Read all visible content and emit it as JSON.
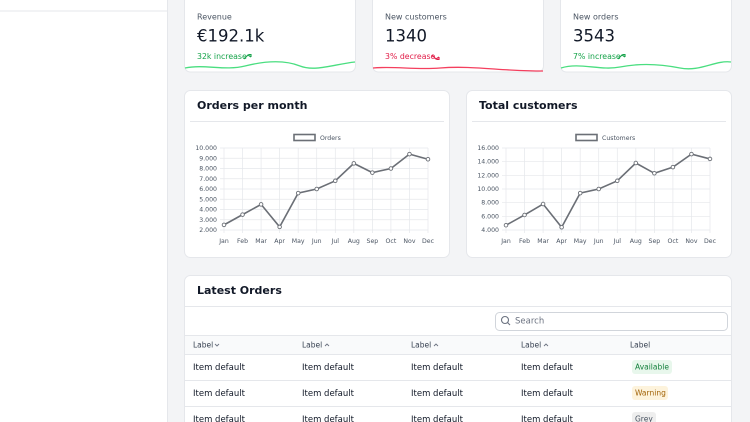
{
  "cards": [
    {
      "label": "Revenue",
      "value": "€192.1k",
      "change": "32k increase"
    },
    {
      "label": "New customers",
      "value": "1340",
      "change": "3% decrease"
    },
    {
      "label": "New orders",
      "value": "3543",
      "change": "7% increase"
    }
  ],
  "chart_data": [
    {
      "type": "line",
      "title": "Orders per month",
      "categories": [
        "Jan",
        "Feb",
        "Mar",
        "Apr",
        "May",
        "Jun",
        "Jul",
        "Aug",
        "Sep",
        "Oct",
        "Nov",
        "Dec"
      ],
      "series": [
        {
          "name": "Orders",
          "color": "#6b6f76",
          "values": [
            2500,
            3500,
            4500,
            2300,
            5600,
            6000,
            6800,
            8500,
            7600,
            8000,
            9400,
            8900
          ]
        }
      ],
      "ylim": [
        2000,
        10000
      ],
      "yticks": [
        {
          "value": 2000,
          "label": "2.000"
        },
        {
          "value": 3000,
          "label": "3.000"
        },
        {
          "value": 4000,
          "label": "4.000"
        },
        {
          "value": 5000,
          "label": "5.000"
        },
        {
          "value": 6000,
          "label": "6.000"
        },
        {
          "value": 7000,
          "label": "7.000"
        },
        {
          "value": 8000,
          "label": "8.000"
        },
        {
          "value": 9000,
          "label": "9.000"
        },
        {
          "value": 10000,
          "label": "10.000"
        }
      ],
      "grid": true,
      "legend": "top"
    },
    {
      "type": "line",
      "title": "Total customers",
      "categories": [
        "Jan",
        "Feb",
        "Mar",
        "Apr",
        "May",
        "Jun",
        "Jul",
        "Aug",
        "Sep",
        "Oct",
        "Nov",
        "Dec"
      ],
      "series": [
        {
          "name": "Customers",
          "color": "#6b6f76",
          "values": [
            4700,
            6200,
            7800,
            4400,
            9400,
            10000,
            11200,
            13800,
            12300,
            13200,
            15100,
            14400
          ]
        }
      ],
      "ylim": [
        4000,
        16000
      ],
      "yticks": [
        {
          "value": 4000,
          "label": "4.000"
        },
        {
          "value": 6000,
          "label": "6.000"
        },
        {
          "value": 8000,
          "label": "8.000"
        },
        {
          "value": 10000,
          "label": "10.000"
        },
        {
          "value": 12000,
          "label": "12.000"
        },
        {
          "value": 14000,
          "label": "14.000"
        },
        {
          "value": 16000,
          "label": "16.000"
        }
      ],
      "grid": true,
      "legend": "top"
    }
  ],
  "table": {
    "title": "Latest Orders",
    "search_placeholder": "Search",
    "columns": [
      "Label",
      "Label",
      "Label",
      "Label",
      "Label"
    ],
    "rows": [
      [
        "Item default",
        "Item default",
        "Item default",
        "Item default",
        "Available"
      ],
      [
        "Item default",
        "Item default",
        "Item default",
        "Item default",
        "Warning"
      ],
      [
        "Item default",
        "Item default",
        "Item default",
        "Item default",
        "Grey"
      ]
    ]
  }
}
